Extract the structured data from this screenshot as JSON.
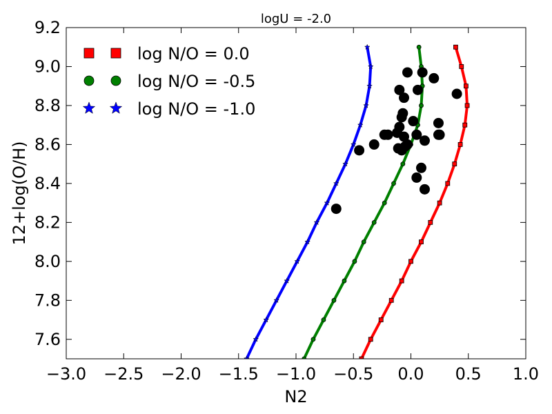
{
  "chart_data": {
    "type": "line",
    "title": "logU = -2.0",
    "xlabel": "N2",
    "ylabel": "12+log(O/H)",
    "xlim": [
      -3.0,
      1.0
    ],
    "ylim": [
      7.5,
      9.2
    ],
    "xticks": [
      -3.0,
      -2.5,
      -2.0,
      -1.5,
      -1.0,
      -0.5,
      0.0,
      0.5,
      1.0
    ],
    "xtick_labels": [
      "−3.0",
      "−2.5",
      "−2.0",
      "−1.5",
      "−1.0",
      "−0.5",
      "0.0",
      "0.5",
      "1.0"
    ],
    "yticks": [
      7.6,
      7.8,
      8.0,
      8.2,
      8.4,
      8.6,
      8.8,
      9.0,
      9.2
    ],
    "ytick_labels": [
      "7.6",
      "7.8",
      "8.0",
      "8.2",
      "8.4",
      "8.6",
      "8.8",
      "9.0",
      "9.2"
    ],
    "legend_position": "top-left",
    "series": [
      {
        "name": "log N/O = 0.0",
        "color": "#ff0000",
        "marker": "square",
        "points": [
          [
            -0.43,
            7.5
          ],
          [
            -0.35,
            7.6
          ],
          [
            -0.26,
            7.7
          ],
          [
            -0.17,
            7.8
          ],
          [
            -0.08,
            7.9
          ],
          [
            0.0,
            8.0
          ],
          [
            0.09,
            8.1
          ],
          [
            0.17,
            8.2
          ],
          [
            0.25,
            8.3
          ],
          [
            0.32,
            8.4
          ],
          [
            0.38,
            8.5
          ],
          [
            0.43,
            8.6
          ],
          [
            0.47,
            8.7
          ],
          [
            0.49,
            8.8
          ],
          [
            0.48,
            8.9
          ],
          [
            0.44,
            9.0
          ],
          [
            0.39,
            9.1
          ]
        ]
      },
      {
        "name": "log N/O = -0.5",
        "color": "#008000",
        "marker": "circle",
        "points": [
          [
            -0.93,
            7.5
          ],
          [
            -0.85,
            7.6
          ],
          [
            -0.76,
            7.7
          ],
          [
            -0.67,
            7.8
          ],
          [
            -0.58,
            7.9
          ],
          [
            -0.49,
            8.0
          ],
          [
            -0.41,
            8.1
          ],
          [
            -0.32,
            8.2
          ],
          [
            -0.23,
            8.3
          ],
          [
            -0.15,
            8.4
          ],
          [
            -0.07,
            8.5
          ],
          [
            0.0,
            8.6
          ],
          [
            0.06,
            8.7
          ],
          [
            0.09,
            8.8
          ],
          [
            0.1,
            8.9
          ],
          [
            0.09,
            9.0
          ],
          [
            0.07,
            9.1
          ]
        ]
      },
      {
        "name": "log N/O = -1.0",
        "color": "#0000ff",
        "marker": "star",
        "points": [
          [
            -1.43,
            7.5
          ],
          [
            -1.35,
            7.6
          ],
          [
            -1.26,
            7.7
          ],
          [
            -1.17,
            7.8
          ],
          [
            -1.08,
            7.9
          ],
          [
            -0.99,
            8.0
          ],
          [
            -0.9,
            8.1
          ],
          [
            -0.82,
            8.2
          ],
          [
            -0.73,
            8.3
          ],
          [
            -0.65,
            8.4
          ],
          [
            -0.57,
            8.5
          ],
          [
            -0.5,
            8.6
          ],
          [
            -0.44,
            8.7
          ],
          [
            -0.39,
            8.8
          ],
          [
            -0.36,
            8.9
          ],
          [
            -0.35,
            9.0
          ],
          [
            -0.38,
            9.1
          ]
        ]
      }
    ],
    "observations": {
      "color": "#000000",
      "marker": "circle",
      "points": [
        [
          -0.65,
          8.27
        ],
        [
          -0.45,
          8.57
        ],
        [
          -0.32,
          8.6
        ],
        [
          -0.23,
          8.65
        ],
        [
          -0.2,
          8.65
        ],
        [
          -0.12,
          8.66
        ],
        [
          -0.1,
          8.69
        ],
        [
          -0.11,
          8.58
        ],
        [
          -0.08,
          8.57
        ],
        [
          -0.05,
          8.59
        ],
        [
          -0.03,
          8.6
        ],
        [
          -0.06,
          8.64
        ],
        [
          -0.07,
          8.76
        ],
        [
          -0.08,
          8.74
        ],
        [
          -0.1,
          8.88
        ],
        [
          -0.06,
          8.84
        ],
        [
          -0.03,
          8.97
        ],
        [
          0.02,
          8.72
        ],
        [
          0.05,
          8.65
        ],
        [
          0.06,
          8.88
        ],
        [
          0.1,
          8.97
        ],
        [
          0.12,
          8.62
        ],
        [
          0.09,
          8.48
        ],
        [
          0.05,
          8.43
        ],
        [
          0.12,
          8.37
        ],
        [
          0.2,
          8.94
        ],
        [
          0.24,
          8.71
        ],
        [
          0.24,
          8.65
        ],
        [
          0.25,
          8.65
        ],
        [
          0.4,
          8.86
        ]
      ]
    }
  }
}
